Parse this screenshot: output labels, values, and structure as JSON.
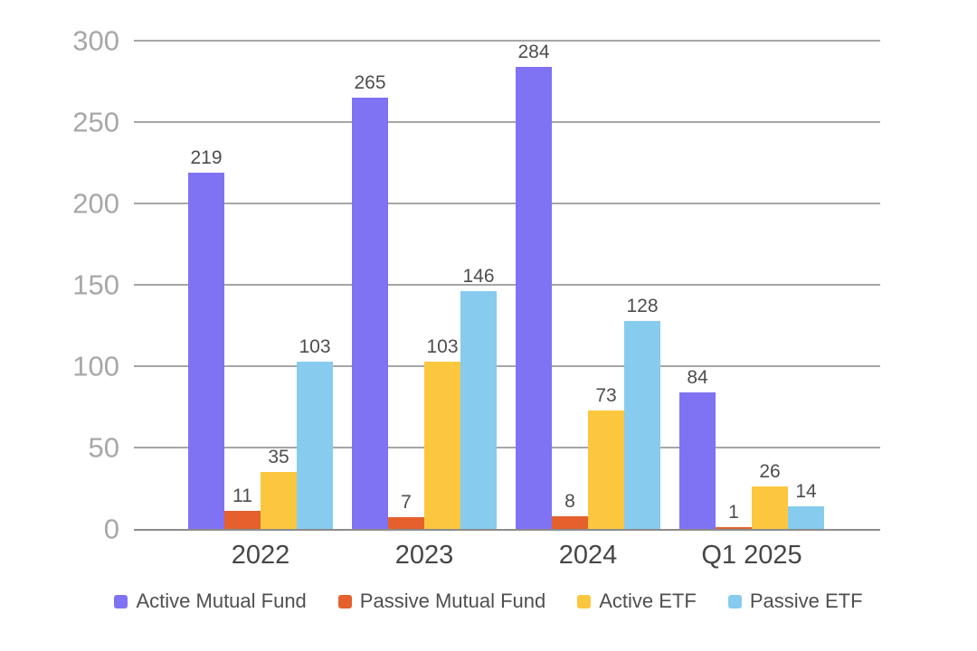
{
  "chart_data": {
    "type": "bar",
    "title": "",
    "xlabel": "",
    "ylabel": "",
    "categories": [
      "2022",
      "2023",
      "2024",
      "Q1 2025"
    ],
    "series": [
      {
        "name": "Active Mutual Fund",
        "color": "#7f72f3",
        "values": [
          219,
          265,
          284,
          84
        ]
      },
      {
        "name": "Passive Mutual Fund",
        "color": "#e5602d",
        "values": [
          11,
          7,
          8,
          1
        ]
      },
      {
        "name": "Active ETF",
        "color": "#fcc73f",
        "values": [
          35,
          103,
          73,
          26
        ]
      },
      {
        "name": "Passive ETF",
        "color": "#87cbef",
        "values": [
          103,
          146,
          128,
          14
        ]
      }
    ],
    "ylim": [
      0,
      300
    ],
    "yticks": [
      0,
      50,
      100,
      150,
      200,
      250,
      300
    ],
    "grid": true,
    "legend_position": "bottom"
  },
  "colors": {
    "background": "#ffffff",
    "gridline": "#a6a6a6",
    "axis_line": "#8c8c8c",
    "y_tick_label": "#a7a7a7",
    "x_category_label": "#464646",
    "value_label": "#4d4d4d",
    "legend_label": "#4f4f4f"
  }
}
